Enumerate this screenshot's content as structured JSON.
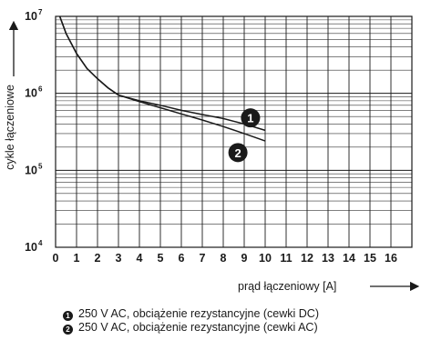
{
  "chart_data": {
    "type": "line",
    "xlabel": "prąd łączeniowy [A]",
    "ylabel": "cykle łączeniowe",
    "xlim": [
      0,
      17
    ],
    "ylim": [
      10000,
      10000000
    ],
    "yscale": "log",
    "x_ticks": [
      "0",
      "1",
      "2",
      "3",
      "4",
      "5",
      "6",
      "7",
      "8",
      "9",
      "10",
      "11",
      "12",
      "13",
      "14",
      "15",
      "16"
    ],
    "y_ticks": [
      {
        "base": "10",
        "exp": "4",
        "value": 10000
      },
      {
        "base": "10",
        "exp": "5",
        "value": 100000
      },
      {
        "base": "10",
        "exp": "6",
        "value": 1000000
      },
      {
        "base": "10",
        "exp": "7",
        "value": 10000000
      }
    ],
    "grid": true,
    "series": [
      {
        "marker": "1",
        "name": "250 V AC, obciążenie rezystancyjne (cewki DC)",
        "x": [
          0.2,
          0.5,
          1,
          1.5,
          2,
          2.5,
          3,
          4,
          5,
          6,
          7,
          8,
          9,
          10
        ],
        "y": [
          10000000,
          6000000,
          3300000,
          2100000,
          1550000,
          1180000,
          950000,
          800000,
          700000,
          600000,
          530000,
          470000,
          400000,
          330000
        ]
      },
      {
        "marker": "2",
        "name": "250 V AC, obciążenie rezystancyjne (cewki AC)",
        "x": [
          0.2,
          0.5,
          1,
          1.5,
          2,
          2.5,
          3,
          4,
          5,
          6,
          7,
          8,
          9,
          10
        ],
        "y": [
          10000000,
          6000000,
          3300000,
          2100000,
          1550000,
          1180000,
          950000,
          780000,
          650000,
          540000,
          450000,
          370000,
          300000,
          240000
        ]
      }
    ]
  },
  "legend": [
    {
      "marker": "1",
      "text": "250 V AC, obciążenie rezystancyjne (cewki DC)"
    },
    {
      "marker": "2",
      "text": "250 V AC, obciążenie rezystancyjne (cewki AC)"
    }
  ]
}
